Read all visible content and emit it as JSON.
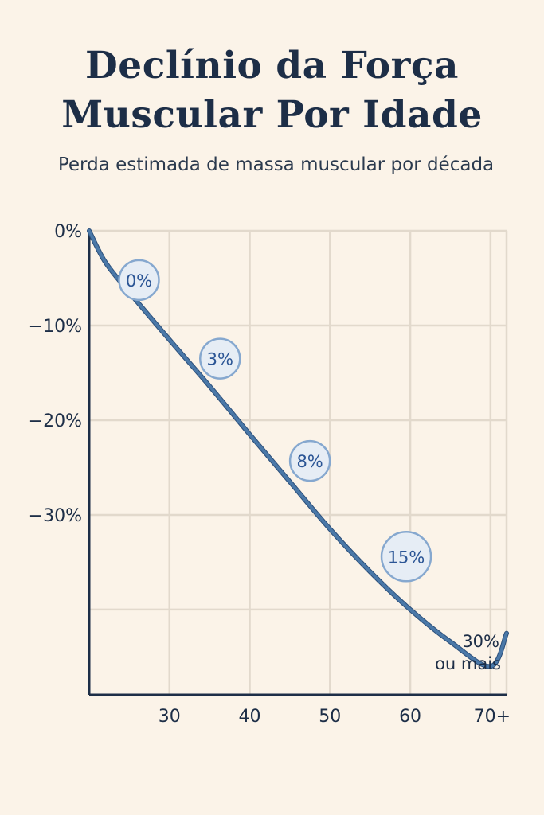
{
  "chart_data": {
    "type": "line",
    "title_line1": "Declínio da Força",
    "title_line2": "Muscular Por Idade",
    "subtitle": "Perda estimada de massa muscular por década",
    "x_tick_labels": [
      "30",
      "40",
      "50",
      "60",
      "70+"
    ],
    "y_tick_labels": [
      "0%",
      "−10%",
      "−20%",
      "−30%"
    ],
    "y_ticks": [
      0,
      -10,
      -20,
      -30
    ],
    "ylim": [
      -49,
      0
    ],
    "xlim": [
      20,
      72
    ],
    "curve": {
      "x": [
        20,
        22,
        25,
        30,
        35,
        40,
        45,
        50,
        55,
        60,
        65,
        70,
        72
      ],
      "y": [
        0,
        -3.3,
        -6.5,
        -11.5,
        -16.4,
        -21.5,
        -26.5,
        -31.5,
        -36,
        -40,
        -43.4,
        -46,
        -42.5
      ]
    },
    "markers": [
      {
        "label": "0%",
        "x": 26.2,
        "y": -5.2
      },
      {
        "label": "3%",
        "x": 36.3,
        "y": -13.5
      },
      {
        "label": "8%",
        "x": 47.5,
        "y": -24.3
      },
      {
        "label": "15%",
        "x": 59.5,
        "y": -34.4
      }
    ],
    "end_label_line1": "30%",
    "end_label_line2": "ou mais",
    "colors": {
      "line": "#4a78a8",
      "line_shadow": "#2c4f7a",
      "grid": "#e2d9cc",
      "axis": "#1d2e47",
      "marker_fill": "#e6edf5",
      "marker_stroke": "#86a8cf",
      "marker_text": "#2b5595"
    }
  }
}
